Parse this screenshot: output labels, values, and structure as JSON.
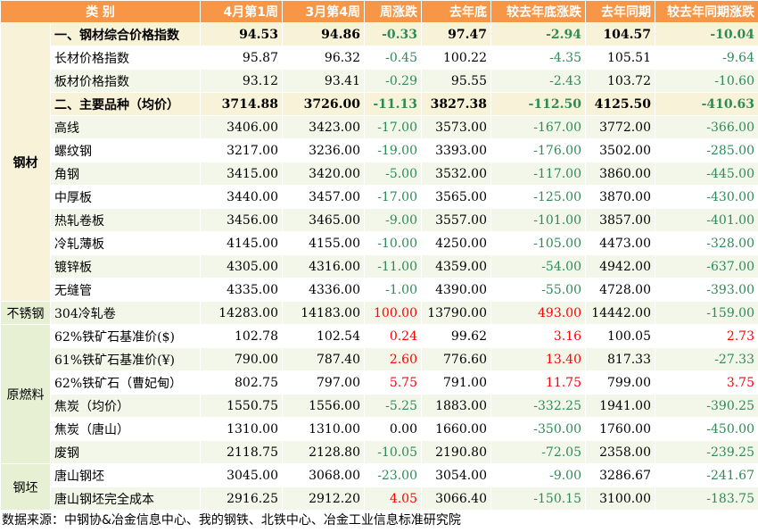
{
  "headers": [
    "类 别",
    "4月第1周",
    "3月第4周",
    "周涨跌",
    "去年底",
    "较去年底涨跌",
    "去年同期",
    "较去年同期涨跌"
  ],
  "groups": {
    "steel": "钢材",
    "stainless": "不锈钢",
    "raw": "原燃料",
    "billet": "钢坯"
  },
  "rows": [
    {
      "name": "一、钢材综合价格指数",
      "v": [
        "94.53",
        "94.86",
        "-0.33",
        "97.47",
        "-2.94",
        "104.57",
        "-10.04"
      ]
    },
    {
      "name": "长材价格指数",
      "v": [
        "95.87",
        "96.32",
        "-0.45",
        "100.22",
        "-4.35",
        "105.51",
        "-9.64"
      ]
    },
    {
      "name": "板材价格指数",
      "v": [
        "93.12",
        "93.41",
        "-0.29",
        "95.55",
        "-2.43",
        "103.72",
        "-10.60"
      ]
    },
    {
      "name": "二、主要品种（均价）",
      "v": [
        "3714.88",
        "3726.00",
        "-11.13",
        "3827.38",
        "-112.50",
        "4125.50",
        "-410.63"
      ]
    },
    {
      "name": "高线",
      "v": [
        "3406.00",
        "3423.00",
        "-17.00",
        "3573.00",
        "-167.00",
        "3772.00",
        "-366.00"
      ]
    },
    {
      "name": "螺纹钢",
      "v": [
        "3217.00",
        "3236.00",
        "-19.00",
        "3393.00",
        "-176.00",
        "3502.00",
        "-285.00"
      ]
    },
    {
      "name": "角钢",
      "v": [
        "3415.00",
        "3420.00",
        "-5.00",
        "3532.00",
        "-117.00",
        "3860.00",
        "-445.00"
      ]
    },
    {
      "name": "中厚板",
      "v": [
        "3440.00",
        "3457.00",
        "-17.00",
        "3565.00",
        "-125.00",
        "3870.00",
        "-430.00"
      ]
    },
    {
      "name": "热轧卷板",
      "v": [
        "3456.00",
        "3465.00",
        "-9.00",
        "3557.00",
        "-101.00",
        "3857.00",
        "-401.00"
      ]
    },
    {
      "name": "冷轧薄板",
      "v": [
        "4145.00",
        "4155.00",
        "-10.00",
        "4250.00",
        "-105.00",
        "4473.00",
        "-328.00"
      ]
    },
    {
      "name": "镀锌板",
      "v": [
        "4305.00",
        "4316.00",
        "-11.00",
        "4359.00",
        "-54.00",
        "4942.00",
        "-637.00"
      ]
    },
    {
      "name": "无缝管",
      "v": [
        "4335.00",
        "4336.00",
        "-1.00",
        "4390.00",
        "-55.00",
        "4728.00",
        "-393.00"
      ]
    },
    {
      "name": "304冷轧卷",
      "v": [
        "14283.00",
        "14183.00",
        "100.00",
        "13790.00",
        "493.00",
        "14442.00",
        "-159.00"
      ]
    },
    {
      "name": "62%铁矿石基准价($)",
      "v": [
        "102.78",
        "102.54",
        "0.24",
        "99.62",
        "3.16",
        "100.05",
        "2.73"
      ]
    },
    {
      "name": "61%铁矿石基准价(¥)",
      "v": [
        "790.00",
        "787.40",
        "2.60",
        "776.60",
        "13.40",
        "817.33",
        "-27.33"
      ]
    },
    {
      "name": "62%铁矿石（曹妃甸）",
      "v": [
        "802.75",
        "797.00",
        "5.75",
        "791.00",
        "11.75",
        "799.00",
        "3.75"
      ]
    },
    {
      "name": "焦炭（均价）",
      "v": [
        "1550.75",
        "1556.00",
        "-5.25",
        "1883.00",
        "-332.25",
        "1941.00",
        "-390.25"
      ]
    },
    {
      "name": "焦炭（唐山）",
      "v": [
        "1310.00",
        "1310.00",
        "0.00",
        "1660.00",
        "-350.00",
        "1760.00",
        "-450.00"
      ]
    },
    {
      "name": "废钢",
      "v": [
        "2118.75",
        "2128.80",
        "-10.05",
        "2190.80",
        "-72.05",
        "2358.00",
        "-239.25"
      ]
    },
    {
      "name": "唐山钢坯",
      "v": [
        "3045.00",
        "3068.00",
        "-23.00",
        "3054.00",
        "-9.00",
        "3286.67",
        "-241.67"
      ]
    },
    {
      "name": "唐山钢坯完全成本",
      "v": [
        "2916.25",
        "2912.20",
        "4.05",
        "3066.40",
        "-150.15",
        "3100.00",
        "-183.75"
      ]
    }
  ],
  "source": "数据来源：中钢协&冶金信息中心、我的钢铁、北铁中心、冶金工业信息标准研究院",
  "colors": {
    "header_bg": "#f79646",
    "group_bg": "#e8f0d4",
    "summary_bg": "#f8f3d8",
    "up": "#ff0000",
    "down": "#2e8b57"
  }
}
